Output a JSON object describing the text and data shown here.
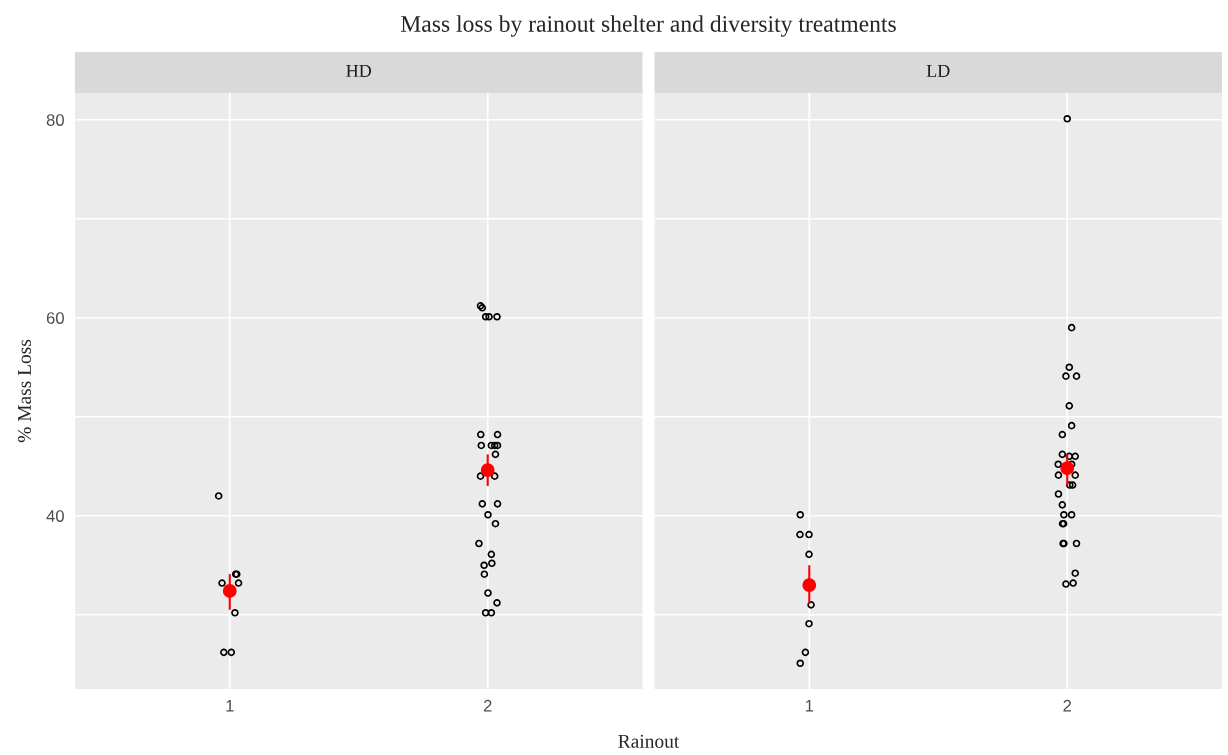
{
  "chart_data": [
    {
      "type": "scatter",
      "title": "Mass loss by rainout shelter and diversity treatments",
      "subtitle": "HD",
      "xlabel": "Rainout",
      "ylabel": "% Mass Loss",
      "xlim": [
        0.4,
        2.6
      ],
      "xticks": [
        1,
        2
      ],
      "ylim": [
        22.5,
        82.7
      ],
      "yticks": [
        {
          "value": 30,
          "label": null
        },
        40,
        {
          "value": 50,
          "label": null
        },
        60,
        {
          "value": 70,
          "label": null
        },
        80
      ],
      "grid": true,
      "marker": "circle",
      "series": [
        {
          "color": "#000000",
          "x": [
            0.957,
            1.023,
            1.027,
            0.97,
            1.034,
            1.02,
            0.977,
            1.006,
            1.972,
            1.979,
            1.992,
            2.005,
            2.036,
            1.973,
            2.038,
            1.975,
            2.014,
            2.027,
            2.038,
            2.03,
            1.972,
            2.027,
            1.979,
            2.038,
            2.001,
            2.03,
            1.966,
            2.014,
            2.016,
            1.986,
            1.987,
            2.001,
            2.036,
            1.992,
            2.014
          ],
          "values": [
            42.0,
            34.1,
            34.1,
            33.2,
            33.2,
            30.2,
            26.2,
            26.2,
            61.2,
            61.0,
            60.1,
            60.1,
            60.1,
            48.2,
            48.2,
            47.1,
            47.1,
            47.1,
            47.1,
            46.2,
            44.0,
            44.0,
            41.2,
            41.2,
            40.1,
            39.2,
            37.2,
            36.1,
            35.2,
            35.0,
            34.1,
            32.2,
            31.2,
            30.2,
            30.2
          ]
        },
        {
          "color": "#ff0000",
          "x": [
            1,
            2
          ],
          "values": [
            32.4,
            44.6
          ],
          "errors": [
            [
              30.5,
              34.1
            ],
            [
              43.0,
              46.2
            ]
          ]
        }
      ]
    },
    {
      "type": "scatter",
      "subtitle": "LD",
      "tick_labels": "x",
      "xlim": [
        0.4,
        2.6
      ],
      "xticks": [
        1,
        2
      ],
      "ylim": [
        22.5,
        82.7
      ],
      "yticks": [
        {
          "value": 30,
          "label": null
        },
        40,
        {
          "value": 50,
          "label": null
        },
        60,
        {
          "value": 70,
          "label": null
        },
        80
      ],
      "grid": true,
      "marker": "circle",
      "series": [
        {
          "color": "#000000",
          "x": [
            0.965,
            0.964,
            0.999,
            0.999,
            1.007,
            0.999,
            0.985,
            0.965,
            2.0,
            2.017,
            2.008,
            1.995,
            2.036,
            2.008,
            2.017,
            1.981,
            1.981,
            2.008,
            2.031,
            1.965,
            2.017,
            1.966,
            2.031,
            2.01,
            2.021,
            1.966,
            1.981,
            1.987,
            2.017,
            1.982,
            1.986,
            1.984,
            1.987,
            2.036,
            2.031,
            1.995,
            2.023
          ],
          "values": [
            40.1,
            38.1,
            38.1,
            36.1,
            31.0,
            29.1,
            26.2,
            25.1,
            80.1,
            59.0,
            55.0,
            54.1,
            54.1,
            51.1,
            49.1,
            48.2,
            46.2,
            46.0,
            46.0,
            45.2,
            45.2,
            44.1,
            44.1,
            43.1,
            43.1,
            42.2,
            41.1,
            40.1,
            40.1,
            39.2,
            39.2,
            37.2,
            37.2,
            37.2,
            34.2,
            33.1,
            33.2
          ]
        },
        {
          "color": "#ff0000",
          "x": [
            1,
            2
          ],
          "values": [
            33.0,
            44.8
          ],
          "errors": [
            [
              31.1,
              35.0
            ],
            [
              43.1,
              46.2
            ]
          ]
        }
      ]
    }
  ]
}
